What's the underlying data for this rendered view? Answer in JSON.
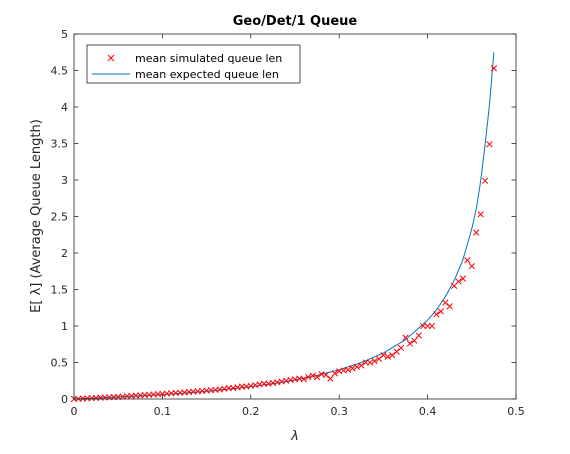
{
  "chart_data": {
    "type": "scatter",
    "title": "Geo/Det/1 Queue",
    "xlabel": "λ",
    "ylabel": "E[ λ] (Average Queue Length)",
    "xlim": [
      0,
      0.5
    ],
    "ylim": [
      0,
      5
    ],
    "xticks": [
      0,
      0.1,
      0.2,
      0.3,
      0.4,
      0.5
    ],
    "xtick_labels": [
      "0",
      "0.1",
      "0.2",
      "0.3",
      "0.4",
      "0.5"
    ],
    "yticks": [
      0,
      0.5,
      1,
      1.5,
      2,
      2.5,
      3,
      3.5,
      4,
      4.5,
      5
    ],
    "ytick_labels": [
      "0",
      "0.5",
      "1",
      "1.5",
      "2",
      "2.5",
      "3",
      "3.5",
      "4",
      "4.5",
      "5"
    ],
    "grid": false,
    "legend_position": "top-left",
    "series": [
      {
        "name": "mean simulated queue len",
        "kind": "markers",
        "marker": "x",
        "color": "#ff0000",
        "x": [
          0.0,
          0.005,
          0.01,
          0.015,
          0.02,
          0.025,
          0.03,
          0.035,
          0.04,
          0.045,
          0.05,
          0.055,
          0.06,
          0.065,
          0.07,
          0.075,
          0.08,
          0.085,
          0.09,
          0.095,
          0.1,
          0.105,
          0.11,
          0.115,
          0.12,
          0.125,
          0.13,
          0.135,
          0.14,
          0.145,
          0.15,
          0.155,
          0.16,
          0.165,
          0.17,
          0.175,
          0.18,
          0.185,
          0.19,
          0.195,
          0.2,
          0.205,
          0.21,
          0.215,
          0.22,
          0.225,
          0.23,
          0.235,
          0.24,
          0.245,
          0.25,
          0.255,
          0.26,
          0.265,
          0.27,
          0.275,
          0.28,
          0.285,
          0.29,
          0.295,
          0.3,
          0.305,
          0.31,
          0.315,
          0.32,
          0.325,
          0.33,
          0.335,
          0.34,
          0.345,
          0.35,
          0.355,
          0.36,
          0.365,
          0.37,
          0.375,
          0.38,
          0.385,
          0.39,
          0.395,
          0.4,
          0.405,
          0.41,
          0.415,
          0.42,
          0.425,
          0.43,
          0.435,
          0.44,
          0.445,
          0.45,
          0.455,
          0.46,
          0.465,
          0.47,
          0.475
        ],
        "y": [
          0.0,
          0.003,
          0.006,
          0.009,
          0.012,
          0.015,
          0.018,
          0.021,
          0.024,
          0.027,
          0.03,
          0.034,
          0.038,
          0.042,
          0.046,
          0.05,
          0.054,
          0.058,
          0.062,
          0.066,
          0.07,
          0.074,
          0.078,
          0.082,
          0.086,
          0.09,
          0.095,
          0.1,
          0.105,
          0.11,
          0.115,
          0.12,
          0.125,
          0.13,
          0.14,
          0.15,
          0.15,
          0.16,
          0.17,
          0.17,
          0.18,
          0.19,
          0.2,
          0.21,
          0.21,
          0.22,
          0.23,
          0.24,
          0.25,
          0.26,
          0.27,
          0.28,
          0.27,
          0.3,
          0.32,
          0.3,
          0.34,
          0.33,
          0.28,
          0.35,
          0.38,
          0.39,
          0.4,
          0.42,
          0.44,
          0.46,
          0.5,
          0.5,
          0.52,
          0.55,
          0.6,
          0.58,
          0.6,
          0.65,
          0.7,
          0.84,
          0.76,
          0.8,
          0.87,
          1.0,
          1.0,
          1.0,
          1.16,
          1.2,
          1.32,
          1.27,
          1.55,
          1.61,
          1.65,
          1.9,
          1.82,
          2.28,
          2.53,
          2.99,
          3.49,
          4.53
        ]
      },
      {
        "name": "mean expected queue len",
        "kind": "line",
        "color": "#0072bd",
        "x": [
          0.0,
          0.025,
          0.05,
          0.075,
          0.1,
          0.125,
          0.15,
          0.175,
          0.2,
          0.225,
          0.25,
          0.275,
          0.3,
          0.325,
          0.35,
          0.375,
          0.4,
          0.41,
          0.42,
          0.43,
          0.44,
          0.45,
          0.455,
          0.46,
          0.465,
          0.47,
          0.475
        ],
        "y": [
          0.0,
          0.013,
          0.028,
          0.044,
          0.062,
          0.083,
          0.107,
          0.136,
          0.17,
          0.211,
          0.261,
          0.323,
          0.4,
          0.499,
          0.63,
          0.812,
          1.08,
          1.22,
          1.4,
          1.62,
          1.91,
          2.33,
          2.6,
          2.98,
          3.48,
          4.03,
          4.75
        ]
      }
    ]
  }
}
